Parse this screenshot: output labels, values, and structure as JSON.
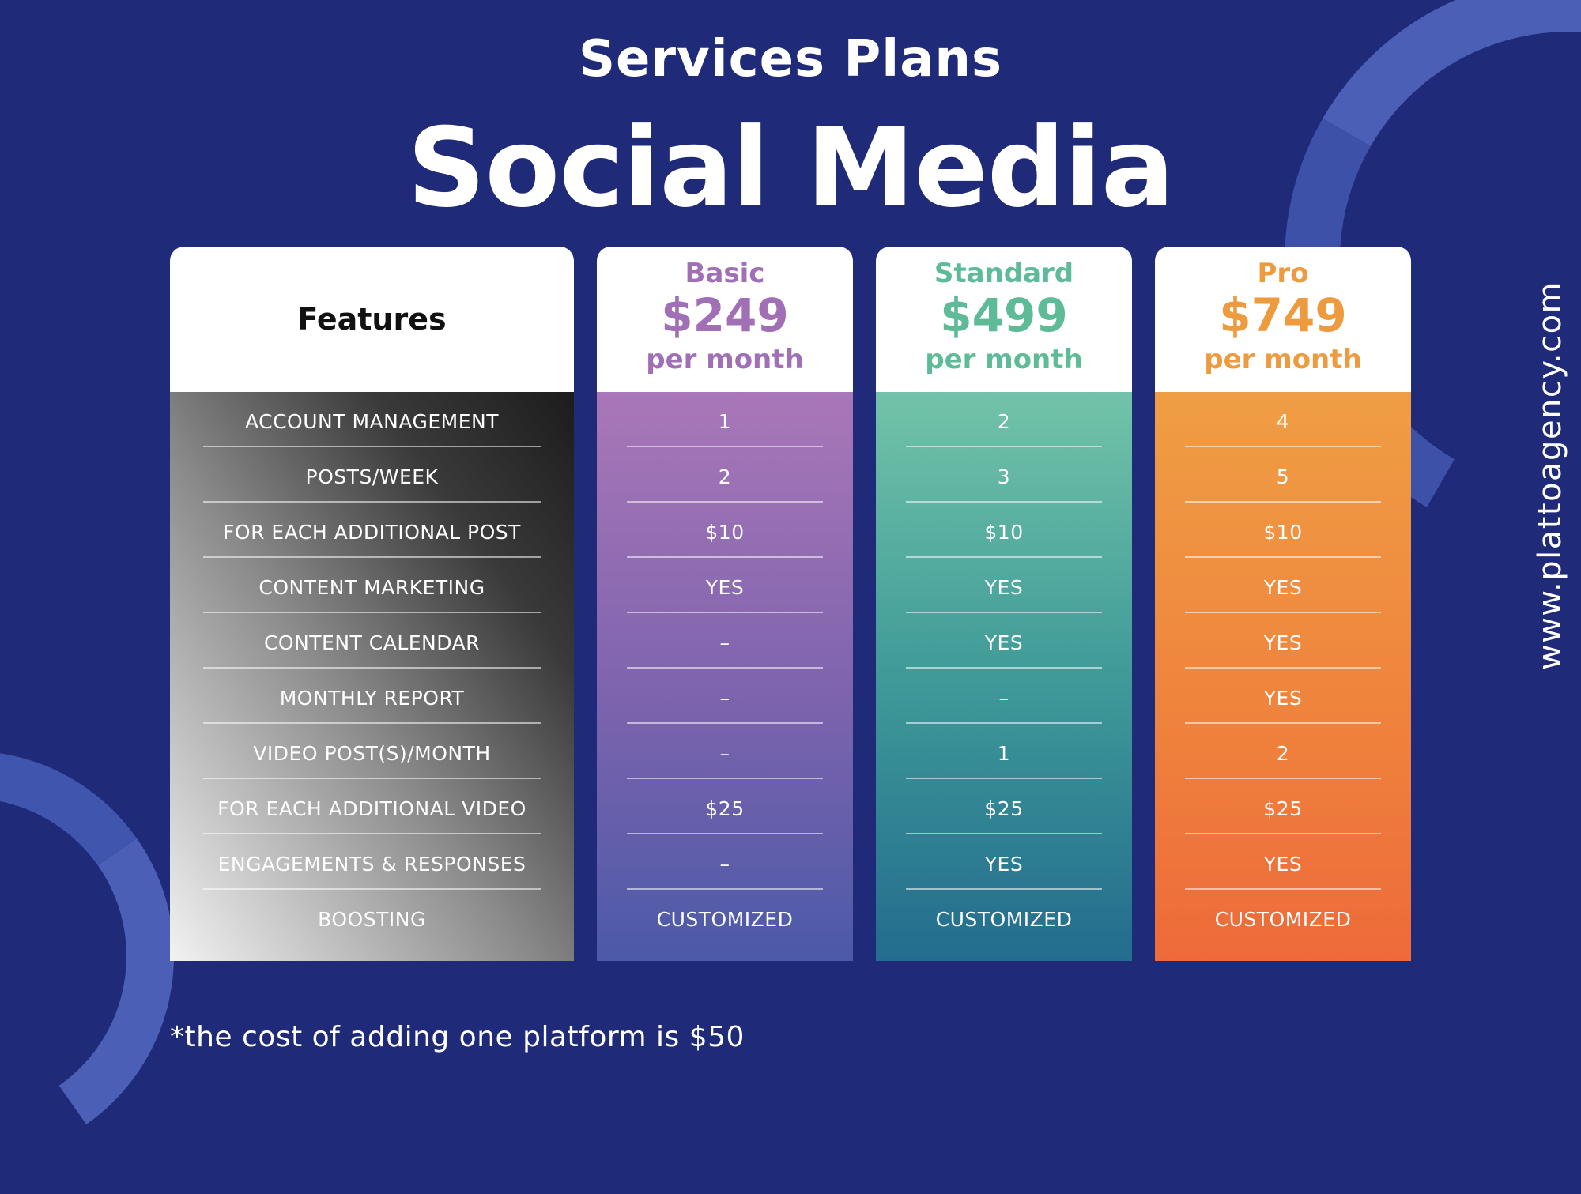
{
  "header": {
    "subtitle": "Services Plans",
    "title": "Social Media"
  },
  "features": {
    "label": "Features",
    "items": [
      "ACCOUNT MANAGEMENT",
      "POSTS/WEEK",
      "FOR EACH ADDITIONAL POST",
      "CONTENT MARKETING",
      "CONTENT CALENDAR",
      "MONTHLY REPORT",
      "VIDEO POST(S)/MONTH",
      "FOR EACH ADDITIONAL VIDEO",
      "ENGAGEMENTS & RESPONSES",
      "BOOSTING"
    ]
  },
  "plans": [
    {
      "name": "Basic",
      "price": "$249",
      "period": "per month",
      "color": "#a06fb5",
      "values": [
        "1",
        "2",
        "$10",
        "YES",
        "–",
        "–",
        "–",
        "$25",
        "–",
        "CUSTOMIZED"
      ]
    },
    {
      "name": "Standard",
      "price": "$499",
      "period": "per month",
      "color": "#5dbb98",
      "values": [
        "2",
        "3",
        "$10",
        "YES",
        "YES",
        "–",
        "1",
        "$25",
        "YES",
        "CUSTOMIZED"
      ]
    },
    {
      "name": "Pro",
      "price": "$749",
      "period": "per month",
      "color": "#ee9a3e",
      "values": [
        "4",
        "5",
        "$10",
        "YES",
        "YES",
        "YES",
        "2",
        "$25",
        "YES",
        "CUSTOMIZED"
      ]
    }
  ],
  "side_url": "www.plattoagency.com",
  "footnote": "*the cost of adding one platform is $50",
  "colors": {
    "background": "#1f2a78",
    "accent_arc": "#4a5fb5"
  }
}
